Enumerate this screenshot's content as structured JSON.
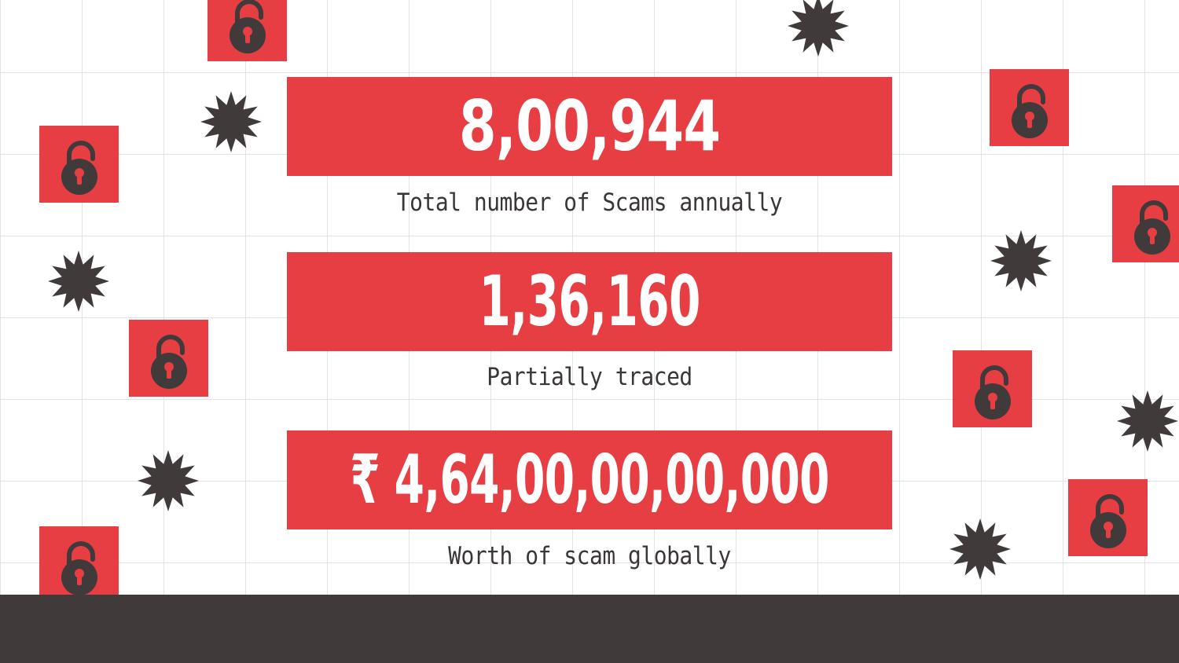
{
  "stats": [
    {
      "value": "8,00,944",
      "label": "Total number of Scams annually"
    },
    {
      "value": "1,36,160",
      "label": "Partially traced"
    },
    {
      "value": "₹ 4,64,00,00,00,000",
      "label": "Worth of scam globally"
    }
  ],
  "colors": {
    "accent_red": "#e63e43",
    "dark": "#403a3b",
    "text": "#3a3536",
    "grid": "#e3e3e3"
  },
  "icons": {
    "lock": "unlocked-padlock-icon",
    "burst": "starburst-icon"
  }
}
